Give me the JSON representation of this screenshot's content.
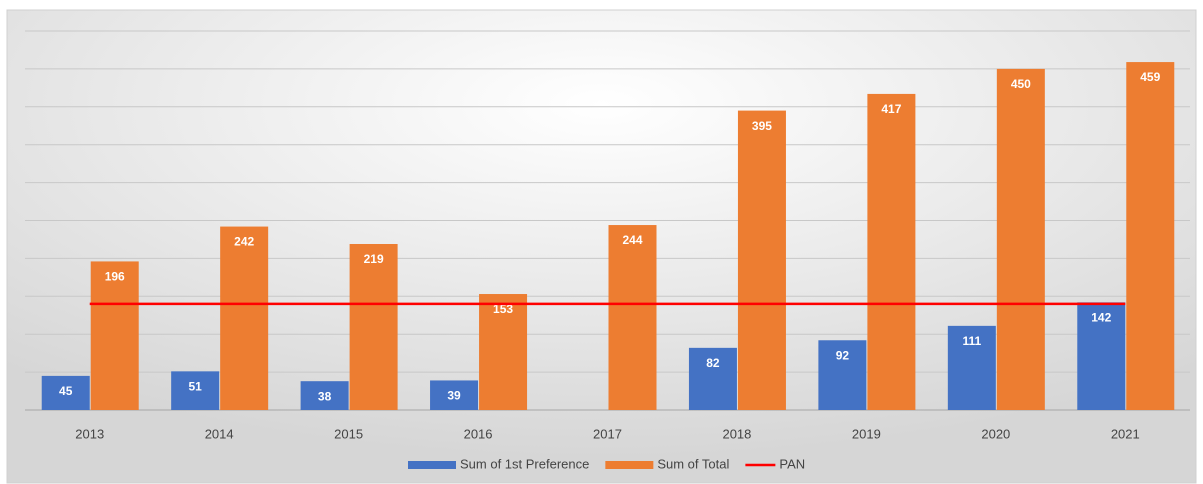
{
  "chart_data": {
    "type": "bar",
    "categories": [
      "2013",
      "2014",
      "2015",
      "2016",
      "2017",
      "2018",
      "2019",
      "2020",
      "2021"
    ],
    "series": [
      {
        "name": "Sum of 1st Preference",
        "color": "#4472c4",
        "values": [
          45,
          51,
          38,
          39,
          null,
          82,
          92,
          111,
          142
        ]
      },
      {
        "name": "Sum of Total",
        "color": "#ed7d31",
        "values": [
          196,
          242,
          219,
          153,
          244,
          395,
          417,
          450,
          459
        ]
      },
      {
        "name": "PAN",
        "type": "line",
        "color": "#ff0000",
        "values": [
          140,
          140,
          140,
          140,
          140,
          140,
          140,
          140,
          140
        ]
      }
    ],
    "ylim": [
      0,
      500
    ],
    "yticks": [
      0,
      50,
      100,
      150,
      200,
      250,
      300,
      350,
      400,
      450,
      500
    ],
    "grid": true,
    "legend": "bottom"
  }
}
